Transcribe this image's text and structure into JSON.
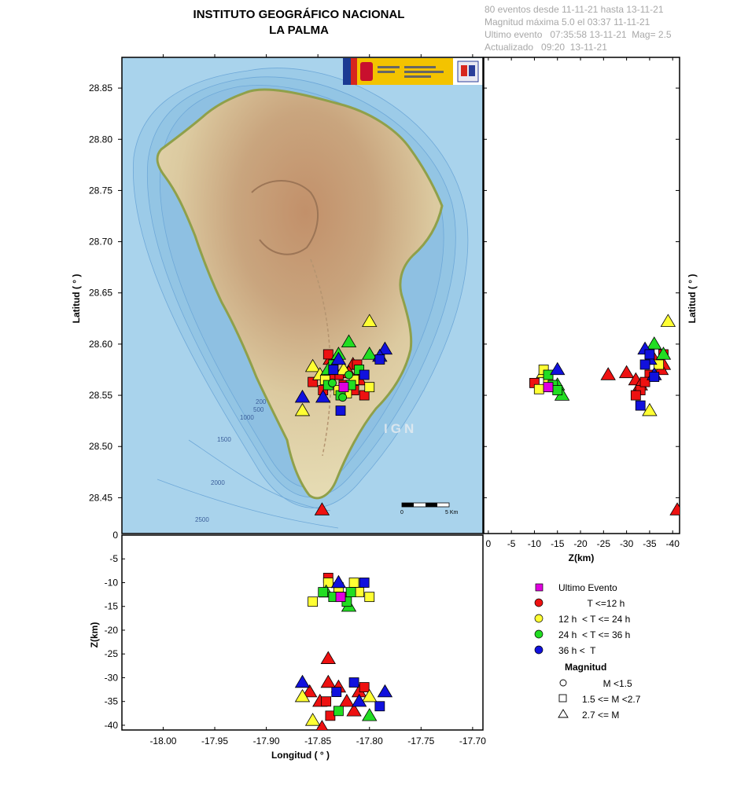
{
  "header": {
    "title_line1": "INSTITUTO GEOGRÁFICO NACIONAL",
    "title_line2": "LA PALMA",
    "info_lines": [
      "80 eventos desde 11-11-21 hasta 13-11-21",
      "Magnitud máxima 5.0 el 03:37 11-11-21",
      "Ultimo evento   07:35:58 13-11-21  Mag= 2.5",
      "Actualizado   09:20  13-11-21"
    ]
  },
  "map": {
    "watermark": "IGN",
    "scale_labels": [
      "0",
      "5 Km"
    ],
    "depth_contour_labels": [
      "200",
      "500",
      "1000",
      "1500",
      "2000",
      "2500"
    ]
  },
  "legend": {
    "items": [
      {
        "label": "Ultimo Evento",
        "color": "#e000e0",
        "shape": "square"
      },
      {
        "label": "           T <=12 h",
        "color": "#ee1111",
        "shape": "circle"
      },
      {
        "label": "12 h  < T <= 24 h",
        "color": "#ffff33",
        "shape": "circle"
      },
      {
        "label": "24 h  < T <= 36 h",
        "color": "#22dd22",
        "shape": "circle"
      },
      {
        "label": "36 h <  T",
        "color": "#1111dd",
        "shape": "circle"
      }
    ],
    "magnitude_title": "Magnitud",
    "magnitude_items": [
      {
        "label": "        M <1.5",
        "shape": "circle"
      },
      {
        "label": "1.5 <= M <2.7",
        "shape": "square"
      },
      {
        "label": "2.7 <= M",
        "shape": "triangle"
      }
    ]
  },
  "chart_data": [
    {
      "type": "scatter",
      "panel": "map",
      "xlabel": "",
      "ylabel": "Latitud ( ° )",
      "xlim": [
        -18.04,
        -17.69
      ],
      "ylim": [
        28.415,
        28.88
      ],
      "yticks": [
        "28.45",
        "28.50",
        "28.55",
        "28.60",
        "28.65",
        "28.70",
        "28.75",
        "28.80",
        "28.85"
      ],
      "series": [
        {
          "color": "#ee1111",
          "shape": "triangle",
          "points": [
            [
              -17.846,
              28.438
            ],
            [
              -17.816,
              28.58
            ],
            [
              -17.82,
              28.572
            ],
            [
              -17.81,
              28.565
            ],
            [
              -17.838,
              28.585
            ]
          ]
        },
        {
          "color": "#ee1111",
          "shape": "square",
          "points": [
            [
              -17.84,
              28.59
            ],
            [
              -17.83,
              28.57
            ],
            [
              -17.825,
              28.56
            ],
            [
              -17.805,
              28.55
            ],
            [
              -17.838,
              28.568
            ],
            [
              -17.812,
              28.58
            ],
            [
              -17.855,
              28.563
            ],
            [
              -17.845,
              28.555
            ],
            [
              -17.815,
              28.555
            ]
          ]
        },
        {
          "color": "#ffff33",
          "shape": "triangle",
          "points": [
            [
              -17.8,
              28.622
            ],
            [
              -17.855,
              28.578
            ],
            [
              -17.865,
              28.535
            ],
            [
              -17.825,
              28.575
            ],
            [
              -17.848,
              28.57
            ]
          ]
        },
        {
          "color": "#ffff33",
          "shape": "square",
          "points": [
            [
              -17.83,
              28.555
            ],
            [
              -17.815,
              28.565
            ],
            [
              -17.8,
              28.558
            ],
            [
              -17.822,
              28.552
            ],
            [
              -17.843,
              28.565
            ]
          ]
        },
        {
          "color": "#22dd22",
          "shape": "triangle",
          "points": [
            [
              -17.82,
              28.602
            ],
            [
              -17.8,
              28.59
            ],
            [
              -17.84,
              28.575
            ],
            [
              -17.83,
              28.59
            ]
          ]
        },
        {
          "color": "#22dd22",
          "shape": "square",
          "points": [
            [
              -17.835,
              28.58
            ],
            [
              -17.81,
              28.575
            ],
            [
              -17.818,
              28.56
            ],
            [
              -17.84,
              28.56
            ],
            [
              -17.828,
              28.55
            ]
          ]
        },
        {
          "color": "#22dd22",
          "shape": "circle",
          "points": [
            [
              -17.826,
              28.548
            ],
            [
              -17.82,
              28.57
            ],
            [
              -17.836,
              28.562
            ]
          ]
        },
        {
          "color": "#1111dd",
          "shape": "triangle",
          "points": [
            [
              -17.785,
              28.595
            ],
            [
              -17.865,
              28.548
            ],
            [
              -17.83,
              28.585
            ],
            [
              -17.79,
              28.588
            ],
            [
              -17.845,
              28.548
            ]
          ]
        },
        {
          "color": "#1111dd",
          "shape": "square",
          "points": [
            [
              -17.79,
              28.585
            ],
            [
              -17.828,
              28.535
            ],
            [
              -17.805,
              28.57
            ],
            [
              -17.835,
              28.575
            ]
          ]
        },
        {
          "color": "#e000e0",
          "shape": "square",
          "points": [
            [
              -17.825,
              28.558
            ]
          ]
        }
      ]
    },
    {
      "type": "scatter",
      "panel": "depth-latitude",
      "xlabel": "Z(km)",
      "ylabel": "Latitud ( ° )",
      "xlim": [
        1,
        -41.5
      ],
      "ylim": [
        28.415,
        28.88
      ],
      "xticks": [
        "0",
        "-5",
        "-10",
        "-15",
        "-20",
        "-25",
        "-30",
        "-35",
        "-40"
      ],
      "series": [
        {
          "color": "#ee1111",
          "shape": "triangle",
          "points": [
            [
              -41,
              28.438
            ],
            [
              -26,
              28.57
            ],
            [
              -30,
              28.572
            ],
            [
              -36,
              28.585
            ],
            [
              -38,
              28.58
            ],
            [
              -32,
              28.565
            ],
            [
              -33,
              28.56
            ],
            [
              -37.5,
              28.575
            ]
          ]
        },
        {
          "color": "#ee1111",
          "shape": "square",
          "points": [
            [
              -10,
              28.562
            ],
            [
              -33,
              28.555
            ],
            [
              -35,
              28.57
            ],
            [
              -38,
              28.59
            ],
            [
              -32,
              28.55
            ],
            [
              -34,
              28.563
            ]
          ]
        },
        {
          "color": "#ffff33",
          "shape": "triangle",
          "points": [
            [
              -39,
              28.622
            ],
            [
              -35,
              28.535
            ],
            [
              -12,
              28.572
            ]
          ]
        },
        {
          "color": "#ffff33",
          "shape": "square",
          "points": [
            [
              -11,
              28.556
            ],
            [
              -12,
              28.575
            ],
            [
              -13,
              28.565
            ],
            [
              -14,
              28.558
            ],
            [
              -37,
              28.58
            ]
          ]
        },
        {
          "color": "#22dd22",
          "shape": "triangle",
          "points": [
            [
              -36,
              28.6
            ],
            [
              -15,
              28.56
            ],
            [
              -16,
              28.55
            ],
            [
              -38,
              28.59
            ]
          ]
        },
        {
          "color": "#22dd22",
          "shape": "square",
          "points": [
            [
              -14,
              28.56
            ],
            [
              -15,
              28.555
            ],
            [
              -13,
              28.57
            ]
          ]
        },
        {
          "color": "#1111dd",
          "shape": "triangle",
          "points": [
            [
              -34,
              28.595
            ],
            [
              -35,
              28.585
            ],
            [
              -15,
              28.575
            ],
            [
              -36,
              28.57
            ]
          ]
        },
        {
          "color": "#1111dd",
          "shape": "square",
          "points": [
            [
              -34,
              28.58
            ],
            [
              -33,
              28.54
            ],
            [
              -36,
              28.568
            ],
            [
              -35,
              28.59
            ]
          ]
        },
        {
          "color": "#e000e0",
          "shape": "square",
          "points": [
            [
              -13,
              28.558
            ]
          ]
        }
      ]
    },
    {
      "type": "scatter",
      "panel": "longitude-depth",
      "xlabel": "Longitud ( ° )",
      "ylabel": "Z(km)",
      "xlim": [
        -18.04,
        -17.69
      ],
      "ylim": [
        -41,
        0
      ],
      "xticks": [
        "-18.00",
        "-17.95",
        "-17.90",
        "-17.85",
        "-17.80",
        "-17.75",
        "-17.70"
      ],
      "yticks": [
        "0",
        "-5",
        "-10",
        "-15",
        "-20",
        "-25",
        "-30",
        "-35",
        "-40"
      ],
      "series": [
        {
          "color": "#ee1111",
          "shape": "triangle",
          "points": [
            [
              -17.846,
              -40.5
            ],
            [
              -17.84,
              -26
            ],
            [
              -17.84,
              -31
            ],
            [
              -17.858,
              -33
            ],
            [
              -17.83,
              -32
            ],
            [
              -17.815,
              -37
            ],
            [
              -17.822,
              -35
            ],
            [
              -17.81,
              -33
            ],
            [
              -17.848,
              -35
            ]
          ]
        },
        {
          "color": "#ee1111",
          "shape": "square",
          "points": [
            [
              -17.84,
              -9
            ],
            [
              -17.823,
              -13
            ],
            [
              -17.838,
              -38
            ],
            [
              -17.805,
              -32
            ],
            [
              -17.842,
              -35
            ]
          ]
        },
        {
          "color": "#ffff33",
          "shape": "triangle",
          "points": [
            [
              -17.855,
              -39
            ],
            [
              -17.865,
              -34
            ],
            [
              -17.8,
              -34
            ]
          ]
        },
        {
          "color": "#ffff33",
          "shape": "square",
          "points": [
            [
              -17.84,
              -10
            ],
            [
              -17.815,
              -10
            ],
            [
              -17.8,
              -13
            ],
            [
              -17.855,
              -14
            ],
            [
              -17.83,
              -11
            ],
            [
              -17.81,
              -12
            ]
          ]
        },
        {
          "color": "#22dd22",
          "shape": "triangle",
          "points": [
            [
              -17.82,
              -15
            ],
            [
              -17.8,
              -38
            ],
            [
              -17.842,
              -12
            ]
          ]
        },
        {
          "color": "#22dd22",
          "shape": "square",
          "points": [
            [
              -17.835,
              -13
            ],
            [
              -17.822,
              -14
            ],
            [
              -17.845,
              -12
            ],
            [
              -17.818,
              -12
            ],
            [
              -17.83,
              -37
            ]
          ]
        },
        {
          "color": "#1111dd",
          "shape": "triangle",
          "points": [
            [
              -17.785,
              -33
            ],
            [
              -17.865,
              -31
            ],
            [
              -17.83,
              -10
            ],
            [
              -17.81,
              -35
            ]
          ]
        },
        {
          "color": "#1111dd",
          "shape": "square",
          "points": [
            [
              -17.79,
              -36
            ],
            [
              -17.805,
              -10
            ],
            [
              -17.815,
              -31
            ],
            [
              -17.832,
              -33
            ]
          ]
        },
        {
          "color": "#e000e0",
          "shape": "square",
          "points": [
            [
              -17.828,
              -13
            ]
          ]
        }
      ]
    }
  ]
}
